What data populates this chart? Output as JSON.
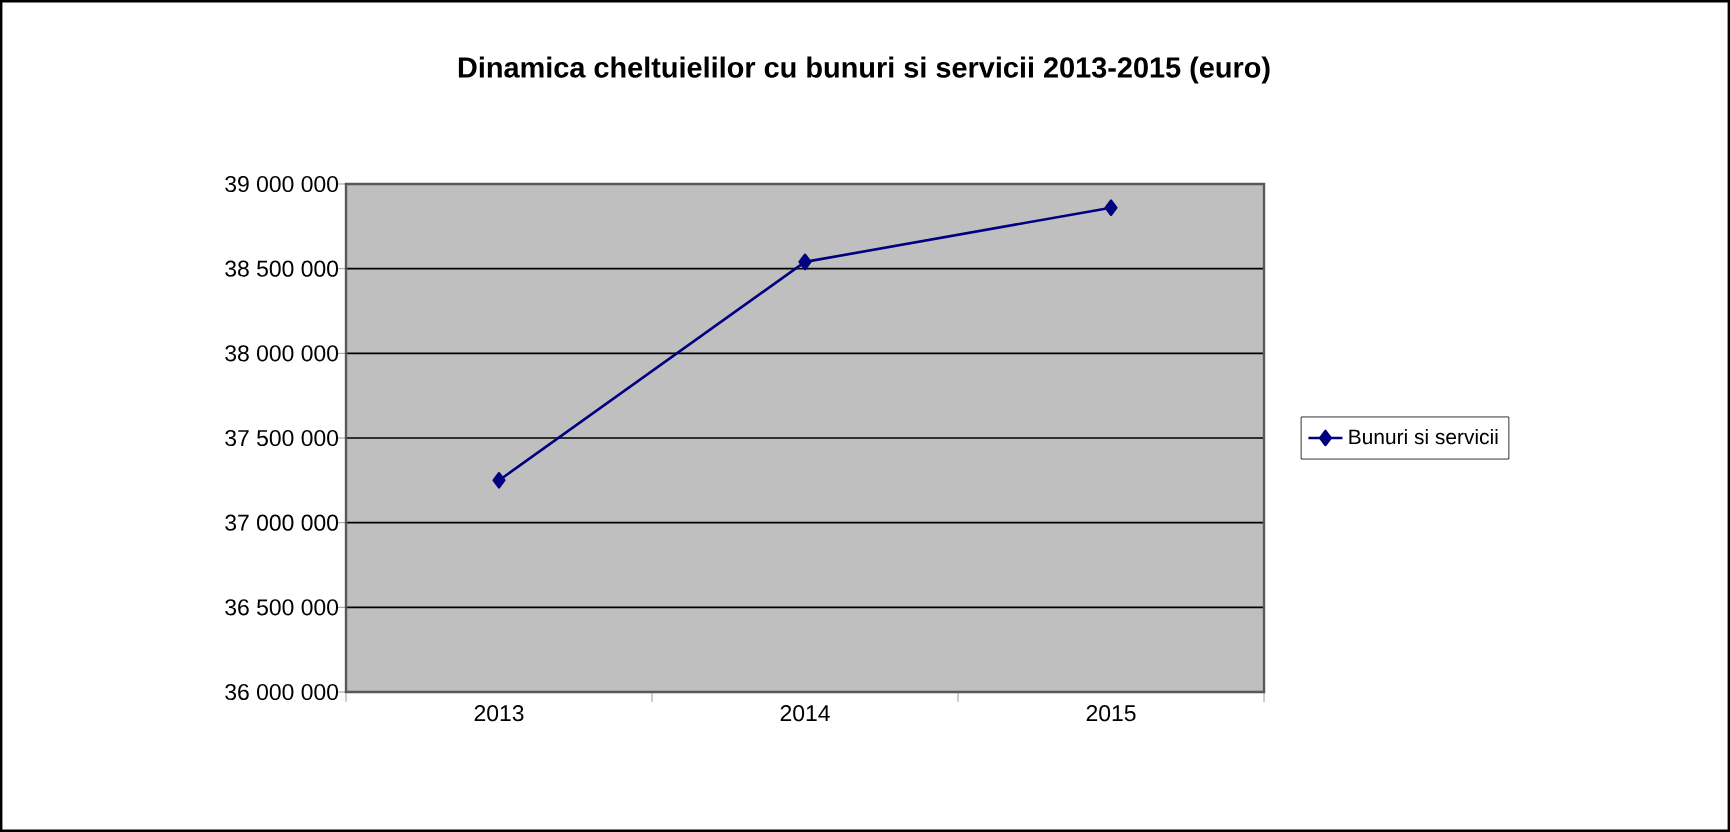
{
  "chart_data": {
    "type": "line",
    "title": "Dinamica  cheltuielilor  cu bunuri  si servicii  2013-2015  (euro)",
    "categories": [
      "2013",
      "2014",
      "2015"
    ],
    "series": [
      {
        "name": "Bunuri si servicii",
        "color": "#000080",
        "values": [
          37250000,
          38540000,
          38860000
        ]
      }
    ],
    "ylim": [
      36000000,
      39000000
    ],
    "yticks": [
      {
        "value": 36000000,
        "label": "36 000 000"
      },
      {
        "value": 36500000,
        "label": "36 500 000"
      },
      {
        "value": 37000000,
        "label": "37 000 000"
      },
      {
        "value": 37500000,
        "label": "37 500 000"
      },
      {
        "value": 38000000,
        "label": "38 000 000"
      },
      {
        "value": 38500000,
        "label": "38 500 000"
      },
      {
        "value": 39000000,
        "label": "39 000 000"
      }
    ],
    "grid": "y",
    "legend": "right",
    "marker": "diamond",
    "line_style": "solid"
  }
}
